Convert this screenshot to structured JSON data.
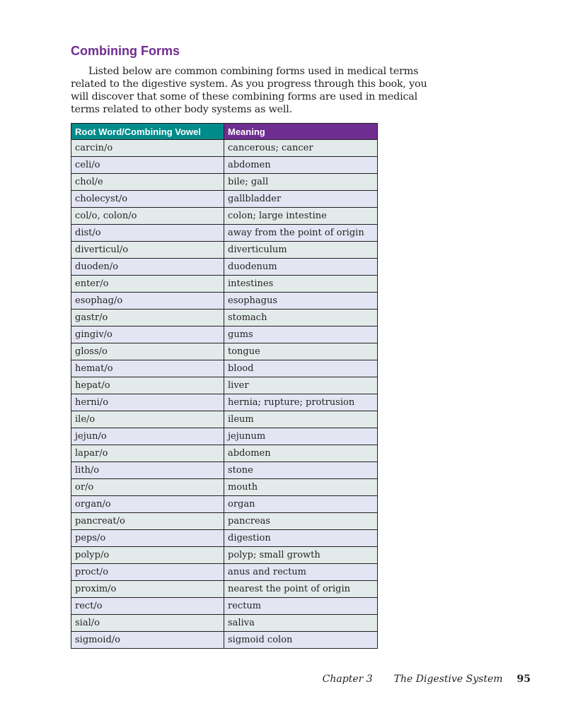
{
  "heading": "Combining Forms",
  "intro": "Listed below are common combining forms used in medical terms related to the digestive system. As you progress through this book, you will discover that some of these combining forms are used in medical terms related to other body systems as well.",
  "colors": {
    "heading": "#6f2c91",
    "header_col1": "#008b8b",
    "header_col2": "#6f2c91",
    "row_odd": "#e3ebea",
    "row_even": "#e3e5f3"
  },
  "table": {
    "headers": [
      "Root Word/Combining Vowel",
      "Meaning"
    ],
    "rows": [
      [
        "carcin/o",
        "cancerous; cancer"
      ],
      [
        "celi/o",
        "abdomen"
      ],
      [
        "chol/e",
        "bile; gall"
      ],
      [
        "cholecyst/o",
        "gallbladder"
      ],
      [
        "col/o, colon/o",
        "colon; large intestine"
      ],
      [
        "dist/o",
        "away from the point of origin"
      ],
      [
        "diverticul/o",
        "diverticulum"
      ],
      [
        "duoden/o",
        "duodenum"
      ],
      [
        "enter/o",
        "intestines"
      ],
      [
        "esophag/o",
        "esophagus"
      ],
      [
        "gastr/o",
        "stomach"
      ],
      [
        "gingiv/o",
        "gums"
      ],
      [
        "gloss/o",
        "tongue"
      ],
      [
        "hemat/o",
        "blood"
      ],
      [
        "hepat/o",
        "liver"
      ],
      [
        "herni/o",
        "hernia; rupture; protrusion"
      ],
      [
        "ile/o",
        "ileum"
      ],
      [
        "jejun/o",
        "jejunum"
      ],
      [
        "lapar/o",
        "abdomen"
      ],
      [
        "lith/o",
        "stone"
      ],
      [
        "or/o",
        "mouth"
      ],
      [
        "organ/o",
        "organ"
      ],
      [
        "pancreat/o",
        "pancreas"
      ],
      [
        "peps/o",
        "digestion"
      ],
      [
        "polyp/o",
        "polyp; small growth"
      ],
      [
        "proct/o",
        "anus and rectum"
      ],
      [
        "proxim/o",
        "nearest the point of origin"
      ],
      [
        "rect/o",
        "rectum"
      ],
      [
        "sial/o",
        "saliva"
      ],
      [
        "sigmoid/o",
        "sigmoid colon"
      ]
    ]
  },
  "footer": {
    "chapter": "Chapter 3",
    "title": "The Digestive System",
    "page": "95"
  }
}
